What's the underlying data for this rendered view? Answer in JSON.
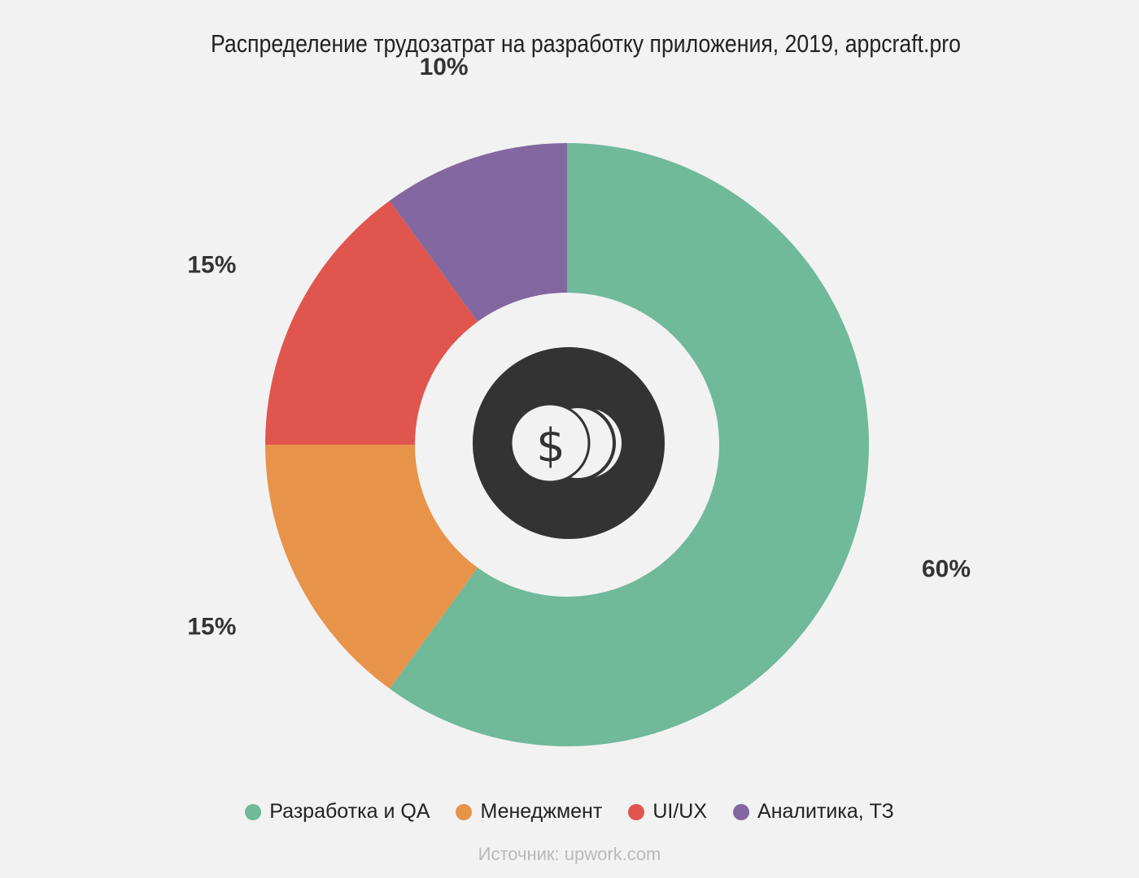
{
  "chart_data": {
    "type": "pie",
    "variant": "donut",
    "title": "Распределение трудозатрат на разработку приложения, 2019, appcraft.pro",
    "series": [
      {
        "name": "Разработка и QA",
        "value": 60,
        "label": "60%",
        "color": "#70b99b"
      },
      {
        "name": "Менеджмент",
        "value": 15,
        "label": "15%",
        "color": "#e8934a"
      },
      {
        "name": "UI/UX",
        "value": 15,
        "label": "15%",
        "color": "#e0564f"
      },
      {
        "name": "Аналитика, ТЗ",
        "value": 10,
        "label": "10%",
        "color": "#8367a0"
      }
    ],
    "legend_position": "bottom",
    "center_icon": "dollar-coins-icon",
    "source": "Источник: upwork.com"
  }
}
